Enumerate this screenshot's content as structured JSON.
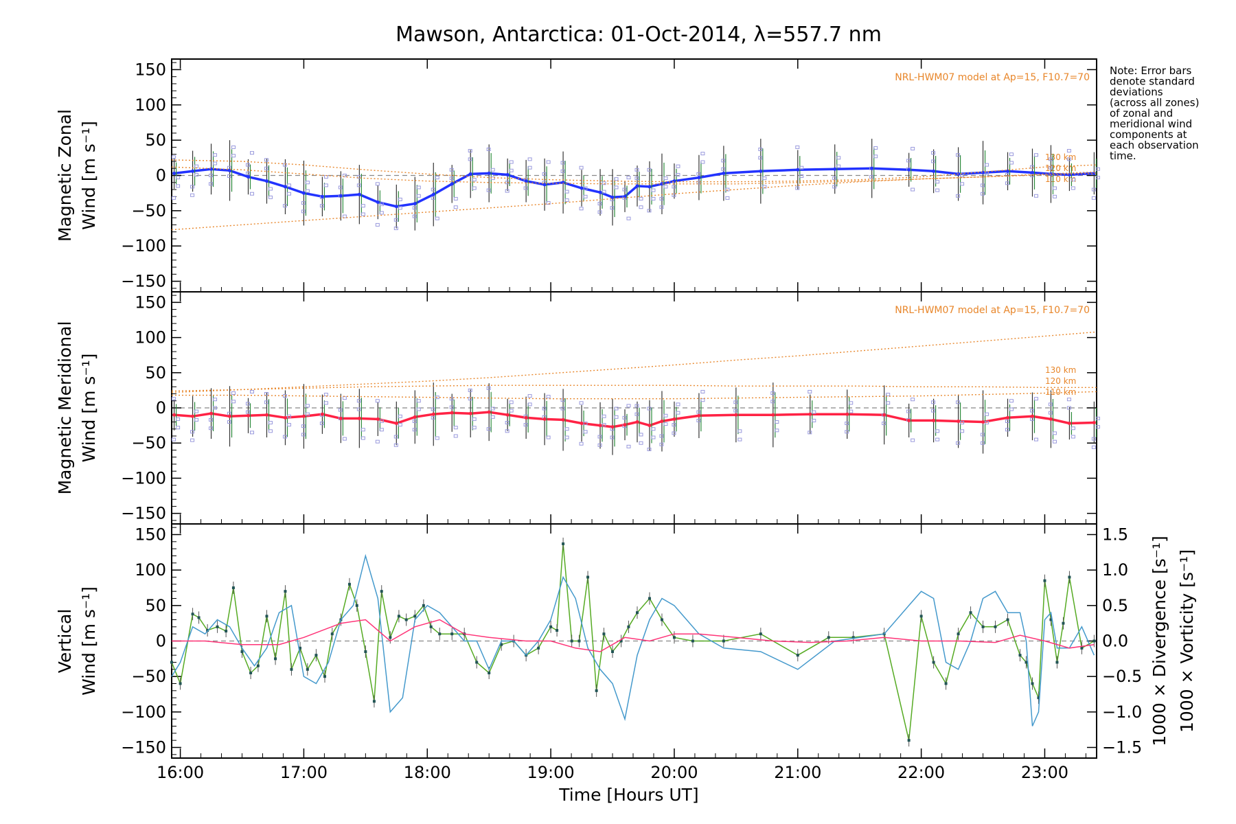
{
  "chart_data": {
    "title": "Mawson, Antarctica: 01-Oct-2014, λ=557.7 nm",
    "xlabel": "Time [Hours UT]",
    "x_unit": "hours UT",
    "xlim": [
      15.93,
      23.42
    ],
    "x_ticks": [
      16,
      17,
      18,
      19,
      20,
      21,
      22,
      23
    ],
    "x_tick_labels": [
      "16:00",
      "17:00",
      "18:00",
      "19:00",
      "20:00",
      "21:00",
      "22:00",
      "23:00"
    ],
    "note_lines": [
      "Note: Error bars",
      "denote standard",
      "deviations",
      "(across all zones)",
      "of zonal and",
      "meridional wind",
      "components at",
      "each observation",
      "time."
    ],
    "panels": [
      {
        "id": "zonal",
        "type": "line",
        "ylabel_line1": "Magnetic Zonal",
        "ylabel_line2": "Wind [m s⁻¹]",
        "ylim": [
          -165,
          165
        ],
        "y_ticks": [
          -150,
          -100,
          -50,
          0,
          50,
          100,
          150
        ],
        "model_label": "NRL-HWM07 model at Ap=15, F10.7=70",
        "altitude_labels": [
          "130 km",
          "120 km",
          "110 km"
        ],
        "series": [
          {
            "name": "zonal mean",
            "color": "#2233ff",
            "x": [
              15.95,
              16.1,
              16.25,
              16.4,
              16.55,
              16.7,
              16.85,
              17.0,
              17.15,
              17.3,
              17.45,
              17.6,
              17.75,
              17.9,
              18.05,
              18.2,
              18.35,
              18.5,
              18.65,
              18.8,
              18.95,
              19.1,
              19.25,
              19.4,
              19.5,
              19.6,
              19.7,
              19.8,
              19.9,
              20.0,
              20.2,
              20.4,
              20.7,
              21.0,
              21.3,
              21.6,
              21.9,
              22.1,
              22.3,
              22.5,
              22.7,
              22.9,
              23.05,
              23.2,
              23.4
            ],
            "y": [
              3,
              6,
              9,
              7,
              -2,
              -8,
              -16,
              -25,
              -30,
              -29,
              -27,
              -38,
              -44,
              -40,
              -27,
              -12,
              2,
              3,
              1,
              -8,
              -13,
              -10,
              -18,
              -24,
              -31,
              -30,
              -15,
              -16,
              -12,
              -8,
              -3,
              3,
              6,
              8,
              9,
              10,
              8,
              6,
              2,
              4,
              6,
              4,
              2,
              1,
              3
            ]
          },
          {
            "name": "",
            "color": "#e8862a",
            "dashed": true,
            "x": [
              15.93,
              16.5,
              17.0,
              17.5,
              18.0,
              18.5,
              19.0,
              19.5,
              20.0,
              20.5,
              21.0,
              21.5,
              22.0,
              22.5,
              23.0,
              23.42
            ],
            "y": [
              22,
              20,
              15,
              8,
              2,
              -3,
              -6,
              -8,
              -9,
              -9,
              -8,
              -6,
              -2,
              5,
              12,
              15
            ]
          },
          {
            "name": "",
            "color": "#e8862a",
            "dashed": true,
            "x": [
              15.93,
              16.5,
              17.0,
              17.5,
              18.0,
              18.5,
              19.0,
              19.5,
              20.0,
              20.5,
              21.0,
              21.5,
              22.0,
              22.5,
              23.0,
              23.42
            ],
            "y": [
              12,
              8,
              2,
              -4,
              -8,
              -10,
              -11,
              -12,
              -12,
              -12,
              -10,
              -8,
              -5,
              -2,
              1,
              3
            ]
          },
          {
            "name": "",
            "color": "#e8862a",
            "dashed": true,
            "x": [
              15.93,
              16.5,
              17.0,
              17.5,
              18.0,
              18.5,
              19.0,
              19.5,
              20.0,
              20.5,
              21.0,
              21.5,
              22.0,
              22.5,
              23.0,
              23.42
            ],
            "y": [
              -77,
              -70,
              -64,
              -58,
              -52,
              -46,
              -40,
              -33,
              -26,
              -20,
              -14,
              -9,
              -5,
              -2,
              2,
              5
            ]
          }
        ]
      },
      {
        "id": "meridional",
        "type": "line",
        "ylabel_line1": "Magnetic Meridional",
        "ylabel_line2": "Wind [m s⁻¹]",
        "ylim": [
          -165,
          165
        ],
        "y_ticks": [
          -150,
          -100,
          -50,
          0,
          50,
          100,
          150
        ],
        "model_label": "NRL-HWM07 model at Ap=15, F10.7=70",
        "altitude_labels": [
          "130 km",
          "120 km",
          "110 km"
        ],
        "series": [
          {
            "name": "meridional mean",
            "color": "#ff2244",
            "x": [
              15.95,
              16.1,
              16.25,
              16.4,
              16.55,
              16.7,
              16.85,
              17.0,
              17.15,
              17.3,
              17.45,
              17.6,
              17.75,
              17.9,
              18.05,
              18.2,
              18.35,
              18.5,
              18.65,
              18.8,
              18.95,
              19.1,
              19.25,
              19.4,
              19.5,
              19.6,
              19.7,
              19.8,
              19.9,
              20.0,
              20.2,
              20.5,
              20.8,
              21.1,
              21.4,
              21.7,
              21.9,
              22.1,
              22.3,
              22.5,
              22.7,
              22.9,
              23.05,
              23.2,
              23.4
            ],
            "y": [
              -10,
              -12,
              -8,
              -12,
              -11,
              -10,
              -14,
              -12,
              -9,
              -15,
              -15,
              -16,
              -22,
              -13,
              -9,
              -7,
              -8,
              -6,
              -10,
              -14,
              -16,
              -17,
              -22,
              -25,
              -27,
              -24,
              -20,
              -25,
              -19,
              -16,
              -11,
              -10,
              -10,
              -9,
              -9,
              -10,
              -18,
              -18,
              -19,
              -20,
              -14,
              -12,
              -16,
              -22,
              -21
            ]
          },
          {
            "name": "",
            "color": "#e8862a",
            "dashed": true,
            "x": [
              15.93,
              16.5,
              17.0,
              17.5,
              18.0,
              18.5,
              19.0,
              19.5,
              20.0,
              20.5,
              21.0,
              21.5,
              22.0,
              22.5,
              23.0,
              23.42
            ],
            "y": [
              22,
              26,
              30,
              34,
              38,
              43,
              49,
              55,
              61,
              68,
              74,
              81,
              88,
              95,
              102,
              108
            ]
          },
          {
            "name": "",
            "color": "#e8862a",
            "dashed": true,
            "x": [
              15.93,
              16.5,
              17.0,
              17.5,
              18.0,
              18.5,
              19.0,
              19.5,
              20.0,
              20.5,
              21.0,
              21.5,
              22.0,
              22.5,
              23.0,
              23.42
            ],
            "y": [
              24,
              26,
              28,
              30,
              31,
              32,
              32,
              32,
              32,
              31,
              31,
              31,
              30,
              30,
              29,
              29
            ]
          },
          {
            "name": "",
            "color": "#e8862a",
            "dashed": true,
            "x": [
              15.93,
              16.5,
              17.0,
              17.5,
              18.0,
              18.5,
              19.0,
              19.5,
              20.0,
              20.5,
              21.0,
              21.5,
              22.0,
              22.5,
              23.0,
              23.42
            ],
            "y": [
              18,
              18,
              17,
              16,
              15,
              14,
              13,
              13,
              13,
              14,
              15,
              16,
              17,
              19,
              21,
              23
            ]
          }
        ]
      },
      {
        "id": "vertical",
        "type": "line",
        "ylabel_line1": "Vertical",
        "ylabel_line2": "Wind [m s⁻¹]",
        "ylim": [
          -165,
          165
        ],
        "y_ticks": [
          -150,
          -100,
          -50,
          0,
          50,
          100,
          150
        ],
        "right_axis": {
          "ylim": [
            -1.65,
            1.65
          ],
          "y_ticks": [
            -1.5,
            -1.0,
            -0.5,
            0.0,
            0.5,
            1.0,
            1.5
          ],
          "y_tick_labels": [
            "−1.5",
            "−1.0",
            "−0.5",
            "0.0",
            "0.5",
            "1.0",
            "1.5"
          ],
          "label_divergence": "1000 × Divergence [s⁻¹]",
          "label_vorticity": "1000 × Vorticity [s⁻¹]"
        },
        "series": [
          {
            "name": "Vertical Wind",
            "color": "#55aa22",
            "axis": "left",
            "x": [
              15.93,
              16.0,
              16.1,
              16.15,
              16.22,
              16.3,
              16.37,
              16.43,
              16.5,
              16.57,
              16.63,
              16.7,
              16.77,
              16.85,
              16.9,
              16.97,
              17.03,
              17.1,
              17.17,
              17.23,
              17.3,
              17.37,
              17.43,
              17.5,
              17.57,
              17.63,
              17.7,
              17.77,
              17.83,
              17.9,
              17.97,
              18.03,
              18.1,
              18.2,
              18.3,
              18.4,
              18.5,
              18.6,
              18.7,
              18.8,
              18.9,
              19.0,
              19.05,
              19.1,
              19.17,
              19.23,
              19.3,
              19.37,
              19.43,
              19.5,
              19.57,
              19.63,
              19.7,
              19.8,
              19.9,
              20.0,
              20.15,
              20.4,
              20.7,
              21.0,
              21.25,
              21.45,
              21.7,
              21.9,
              22.0,
              22.1,
              22.2,
              22.3,
              22.4,
              22.5,
              22.6,
              22.7,
              22.8,
              22.85,
              22.9,
              22.95,
              23.0,
              23.05,
              23.1,
              23.15,
              23.2,
              23.3,
              23.4
            ],
            "y": [
              -30,
              -60,
              38,
              33,
              15,
              20,
              14,
              75,
              -15,
              -45,
              -35,
              35,
              -25,
              70,
              -40,
              -10,
              -40,
              -20,
              -50,
              10,
              30,
              80,
              50,
              -15,
              -85,
              70,
              5,
              35,
              30,
              35,
              50,
              20,
              10,
              10,
              10,
              -30,
              -45,
              -5,
              0,
              -20,
              -10,
              20,
              15,
              137,
              0,
              0,
              90,
              -70,
              10,
              -15,
              0,
              20,
              40,
              60,
              30,
              5,
              0,
              0,
              10,
              -20,
              5,
              5,
              10,
              -140,
              35,
              -30,
              -60,
              10,
              40,
              20,
              20,
              30,
              -20,
              -30,
              -60,
              -80,
              85,
              30,
              -30,
              25,
              90,
              -10,
              0
            ]
          },
          {
            "name": "1000 × Divergence",
            "color": "#4499cc",
            "axis": "right",
            "x": [
              15.93,
              16.0,
              16.1,
              16.2,
              16.3,
              16.4,
              16.5,
              16.6,
              16.7,
              16.8,
              16.9,
              17.0,
              17.1,
              17.2,
              17.3,
              17.4,
              17.5,
              17.6,
              17.7,
              17.8,
              17.9,
              18.0,
              18.1,
              18.2,
              18.3,
              18.4,
              18.5,
              18.6,
              18.7,
              18.8,
              18.9,
              19.0,
              19.1,
              19.2,
              19.3,
              19.4,
              19.5,
              19.6,
              19.7,
              19.8,
              19.9,
              20.0,
              20.2,
              20.4,
              20.7,
              21.0,
              21.3,
              21.7,
              21.9,
              22.0,
              22.1,
              22.2,
              22.3,
              22.4,
              22.5,
              22.6,
              22.7,
              22.8,
              22.85,
              22.9,
              22.95,
              23.0,
              23.05,
              23.1,
              23.2,
              23.3,
              23.4
            ],
            "y": [
              -0.5,
              -0.3,
              0.2,
              0.1,
              0.3,
              0.2,
              -0.1,
              -0.35,
              -0.1,
              0.4,
              0.5,
              -0.5,
              -0.6,
              -0.3,
              0.3,
              0.5,
              1.2,
              0.6,
              -1.0,
              -0.8,
              0.3,
              0.5,
              0.4,
              0.2,
              0.0,
              0.0,
              -0.4,
              0.0,
              0.0,
              -0.2,
              0.0,
              0.3,
              0.9,
              0.6,
              -0.1,
              -0.4,
              -0.6,
              -1.1,
              -0.2,
              0.3,
              0.6,
              0.5,
              0.1,
              -0.1,
              -0.15,
              -0.4,
              0.0,
              0.1,
              0.5,
              0.7,
              0.6,
              -0.3,
              -0.4,
              0.0,
              0.6,
              0.7,
              0.4,
              0.4,
              0.0,
              -1.2,
              -1.0,
              0.3,
              0.4,
              -0.1,
              -0.1,
              0.2,
              -0.2
            ]
          },
          {
            "name": "1000 × Vorticity",
            "color": "#ff3377",
            "axis": "right",
            "x": [
              15.93,
              16.2,
              16.5,
              16.8,
              17.0,
              17.3,
              17.5,
              17.7,
              17.9,
              18.1,
              18.3,
              18.5,
              18.8,
              19.0,
              19.2,
              19.4,
              19.6,
              19.8,
              20.0,
              20.2,
              20.5,
              20.8,
              21.1,
              21.4,
              21.7,
              22.0,
              22.3,
              22.6,
              22.8,
              23.0,
              23.2,
              23.4
            ],
            "y": [
              0.0,
              0.0,
              -0.05,
              -0.05,
              0.05,
              0.25,
              0.3,
              0.0,
              0.2,
              0.3,
              0.1,
              0.05,
              0.0,
              0.0,
              -0.1,
              -0.15,
              0.05,
              0.0,
              0.1,
              0.1,
              0.05,
              0.0,
              -0.02,
              0.0,
              0.05,
              0.0,
              0.0,
              -0.02,
              0.08,
              0.0,
              -0.1,
              -0.05
            ]
          }
        ]
      }
    ],
    "grid": false,
    "zero_line": true
  }
}
